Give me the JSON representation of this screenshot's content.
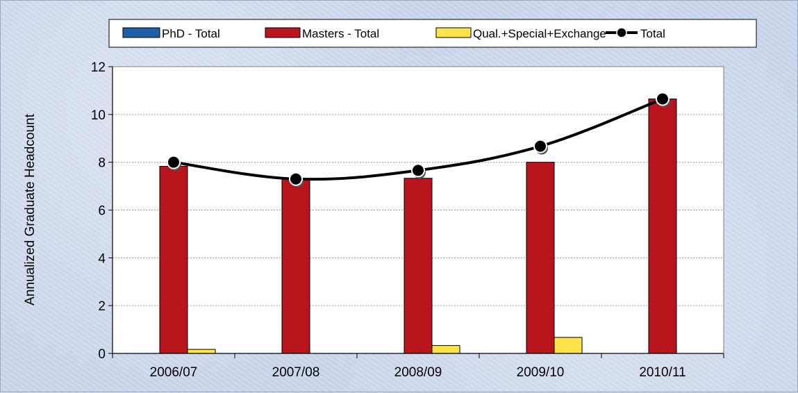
{
  "chart_data": {
    "type": "bar",
    "categories": [
      "2006/07",
      "2007/08",
      "2008/09",
      "2009/10",
      "2010/11"
    ],
    "series": [
      {
        "name": "PhD - Total",
        "kind": "bar",
        "color": "#1f5fa8",
        "values": [
          0,
          0,
          0,
          0,
          0
        ]
      },
      {
        "name": "Masters - Total",
        "kind": "bar",
        "color": "#b8141c",
        "values": [
          7.83,
          7.3,
          7.33,
          8.0,
          10.65
        ]
      },
      {
        "name": "Qual.+Special+Exchange",
        "kind": "bar",
        "color": "#ffe34d",
        "values": [
          0.17,
          0,
          0.33,
          0.67,
          0
        ]
      },
      {
        "name": "Total",
        "kind": "line",
        "color": "#000000",
        "values": [
          8.0,
          7.3,
          7.66,
          8.67,
          10.65
        ]
      }
    ],
    "title": "",
    "xlabel": "",
    "ylabel": "Annualized Graduate Headcount",
    "ylim": [
      0,
      12
    ],
    "yticks": [
      "0",
      "2",
      "4",
      "6",
      "8",
      "10",
      "12"
    ],
    "grid": true,
    "legend_position": "top"
  }
}
